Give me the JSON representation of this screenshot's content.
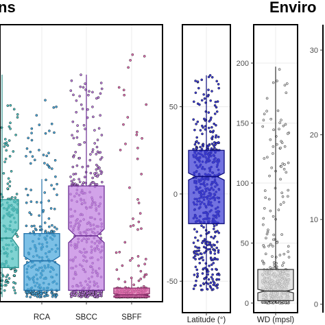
{
  "titles": {
    "left": "ns",
    "right": "Enviro"
  },
  "chart_data": [
    {
      "type": "box",
      "panel": "left",
      "categories": [
        "",
        "RCA",
        "SBCC",
        "SBFF"
      ],
      "boxes": [
        {
          "category": "",
          "color": "#2a8f8a",
          "fill": "#4fc2c0",
          "q1": 0.13,
          "median": 0.26,
          "q3": 0.43,
          "notch_half": 0.04,
          "whisker_low": 0.0,
          "whisker_high": 0.98,
          "n": 700,
          "spread_low": 0.0,
          "spread_high": 0.92
        },
        {
          "category": "RCA",
          "color": "#1f6fa8",
          "fill": "#4aa8dc",
          "q1": 0.03,
          "median": 0.16,
          "q3": 0.28,
          "notch_half": 0.02,
          "whisker_low": 0.0,
          "whisker_high": 0.52,
          "n": 650,
          "spread_low": 0.0,
          "spread_high": 0.88
        },
        {
          "category": "SBCC",
          "color": "#6a2c91",
          "fill": "#c07fe0",
          "q1": 0.03,
          "median": 0.27,
          "q3": 0.49,
          "notch_half": 0.03,
          "whisker_low": 0.0,
          "whisker_high": 0.98,
          "n": 1100,
          "spread_low": 0.0,
          "spread_high": 0.98
        },
        {
          "category": "SBFF",
          "color": "#8a2e6a",
          "fill": "#e46fb2",
          "q1": 0.0,
          "median": 0.01,
          "q3": 0.04,
          "notch_half": 0.005,
          "whisker_low": 0.0,
          "whisker_high": 0.08,
          "n": 600,
          "spread_low": 0.0,
          "spread_high": 1.07
        }
      ],
      "ylim": [
        -0.02,
        1.2
      ]
    },
    {
      "type": "box",
      "panel": "latitude",
      "xlabel": "Latitude (°)",
      "color": "#0a0a7a",
      "fill": "#3b3bd6",
      "q1": -17,
      "median": 10,
      "q3": 25,
      "notch_half": 2,
      "whisker_low": -55,
      "whisker_high": 68,
      "yticks": [
        -50,
        0,
        50
      ],
      "ylim": [
        -68,
        97
      ]
    },
    {
      "type": "box",
      "panel": "water-depth",
      "xlabel": "WD (mpsl)",
      "color": "#333333",
      "fill": "#d9d9d9",
      "q1": 2,
      "median": 10,
      "q3": 28,
      "notch_half": 1.5,
      "whisker_low": 0,
      "whisker_high": 197,
      "yticks": [
        0,
        50,
        100,
        150,
        200
      ],
      "ylim": [
        -8,
        232
      ]
    },
    {
      "type": "axis",
      "panel": "cut-off",
      "yticks": [
        0,
        10,
        20,
        30
      ],
      "ylim": [
        -1,
        33
      ]
    }
  ]
}
